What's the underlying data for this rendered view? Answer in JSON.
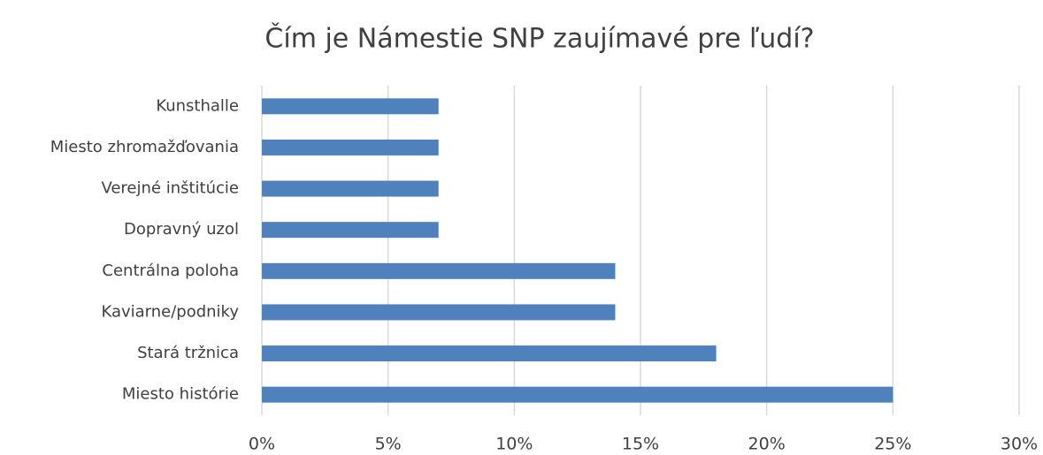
{
  "chart_data": {
    "type": "bar",
    "orientation": "horizontal",
    "title": "Čím je Námestie SNP zaujímavé pre ľudí?",
    "categories": [
      "Kunsthalle",
      "Miesto zhromažďovania",
      "Verejné inštitúcie",
      "Dopravný uzol",
      "Centrálna poloha",
      "Kaviarne/podniky",
      "Stará tržnica",
      "Miesto histórie"
    ],
    "values": [
      7,
      7,
      7,
      7,
      14,
      14,
      18,
      25
    ],
    "color": "#4f81bd",
    "xlim": [
      0,
      30
    ],
    "xticks": [
      {
        "value": 0,
        "label": "0%"
      },
      {
        "value": 5,
        "label": "5%"
      },
      {
        "value": 10,
        "label": "10%"
      },
      {
        "value": 15,
        "label": "15%"
      },
      {
        "value": 20,
        "label": "20%"
      },
      {
        "value": 25,
        "label": "25%"
      },
      {
        "value": 30,
        "label": "30%"
      }
    ],
    "grid": true
  }
}
